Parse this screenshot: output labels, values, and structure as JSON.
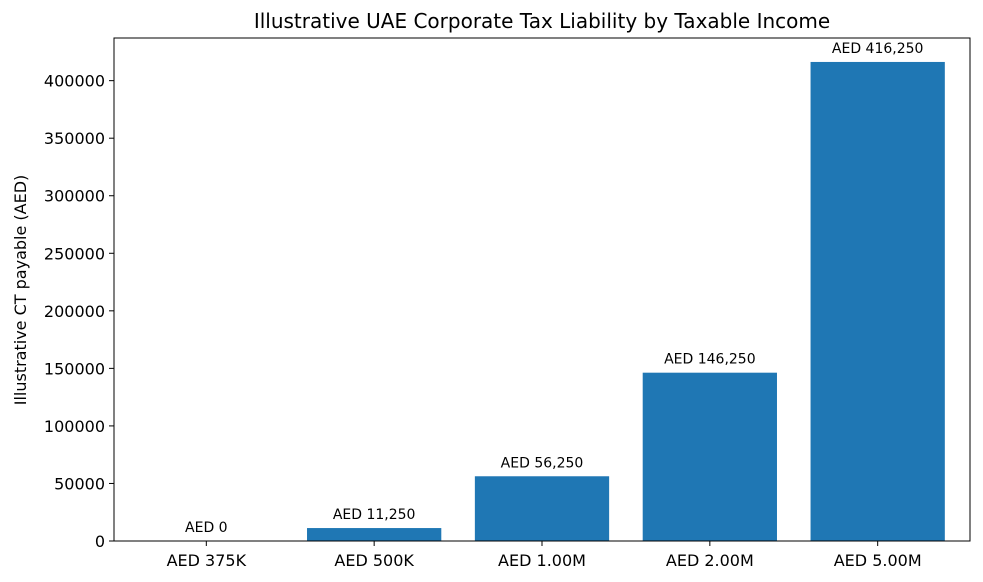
{
  "chart_data": {
    "type": "bar",
    "title": "Illustrative UAE Corporate Tax Liability by Taxable Income",
    "xlabel": "",
    "ylabel": "Illustrative CT payable (AED)",
    "categories": [
      "AED 375K",
      "AED 500K",
      "AED 1.00M",
      "AED 2.00M",
      "AED 5.00M"
    ],
    "values": [
      0,
      11250,
      56250,
      146250,
      416250
    ],
    "data_labels": [
      "AED 0",
      "AED 11,250",
      "AED 56,250",
      "AED 146,250",
      "AED 416,250"
    ],
    "yticks": [
      0,
      50000,
      100000,
      150000,
      200000,
      250000,
      300000,
      350000,
      400000
    ],
    "ylim": [
      0,
      437062.5
    ],
    "grid": false,
    "bar_color": "#1f77b4"
  }
}
